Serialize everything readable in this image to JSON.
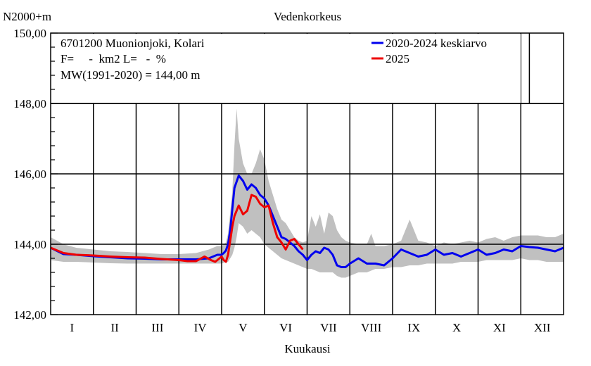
{
  "chart_data": {
    "type": "line",
    "title": "Vedenkorkeus",
    "ylabel": "N2000+m",
    "xlabel": "Kuukausi",
    "ylim": [
      142,
      150
    ],
    "xlim": [
      0,
      12
    ],
    "y_ticks": [
      "142,00",
      "144,00",
      "146,00",
      "148,00",
      "150,00"
    ],
    "y_tick_values": [
      142,
      144,
      146,
      148,
      150
    ],
    "categories": [
      "I",
      "II",
      "III",
      "IV",
      "V",
      "VI",
      "VII",
      "VIII",
      "IX",
      "X",
      "XI",
      "XII"
    ],
    "grid": true,
    "info": {
      "station": "6701200 Muonionjoki, Kolari",
      "area": "F=     -  km2 L=   -  %",
      "mean": "MW(1991-2020) = 144,00 m"
    },
    "legend_position": "top-right",
    "series": [
      {
        "name": "2020-2024 keskiarvo",
        "color": "#0000ee",
        "x": [
          0,
          0.3,
          0.6,
          1.0,
          1.4,
          1.8,
          2.2,
          2.6,
          3.0,
          3.4,
          3.7,
          3.9,
          4.0,
          4.05,
          4.1,
          4.15,
          4.2,
          4.25,
          4.3,
          4.4,
          4.5,
          4.6,
          4.7,
          4.8,
          4.9,
          5.0,
          5.1,
          5.2,
          5.3,
          5.4,
          5.5,
          5.6,
          5.7,
          5.8,
          5.9,
          6.0,
          6.1,
          6.2,
          6.3,
          6.4,
          6.5,
          6.6,
          6.7,
          6.8,
          6.9,
          7.0,
          7.2,
          7.4,
          7.6,
          7.8,
          8.0,
          8.2,
          8.4,
          8.6,
          8.8,
          9.0,
          9.2,
          9.4,
          9.6,
          9.8,
          10.0,
          10.2,
          10.4,
          10.6,
          10.8,
          11.0,
          11.2,
          11.4,
          11.6,
          11.8,
          12.0
        ],
        "y": [
          143.9,
          143.72,
          143.7,
          143.66,
          143.63,
          143.6,
          143.59,
          143.57,
          143.57,
          143.57,
          143.6,
          143.7,
          143.7,
          143.75,
          143.82,
          144.0,
          144.4,
          145.0,
          145.6,
          145.95,
          145.8,
          145.55,
          145.7,
          145.6,
          145.4,
          145.3,
          145.1,
          144.8,
          144.5,
          144.2,
          144.15,
          144.05,
          143.95,
          143.8,
          143.7,
          143.55,
          143.7,
          143.8,
          143.75,
          143.9,
          143.85,
          143.7,
          143.4,
          143.35,
          143.35,
          143.45,
          143.6,
          143.45,
          143.45,
          143.4,
          143.6,
          143.85,
          143.75,
          143.65,
          143.7,
          143.85,
          143.7,
          143.75,
          143.65,
          143.75,
          143.85,
          143.7,
          143.75,
          143.85,
          143.8,
          143.95,
          143.92,
          143.9,
          143.85,
          143.8,
          143.9
        ]
      },
      {
        "name": "2025",
        "color": "#ee0000",
        "x": [
          0,
          0.3,
          0.6,
          1.0,
          1.4,
          1.8,
          2.2,
          2.6,
          3.0,
          3.2,
          3.4,
          3.6,
          3.75,
          3.85,
          3.95,
          4.0,
          4.05,
          4.1,
          4.15,
          4.2,
          4.25,
          4.3,
          4.4,
          4.5,
          4.6,
          4.7,
          4.8,
          4.9,
          5.0,
          5.1,
          5.2,
          5.3,
          5.4,
          5.5,
          5.6,
          5.7,
          5.8,
          5.9
        ],
        "y": [
          143.9,
          143.75,
          143.7,
          143.68,
          143.65,
          143.63,
          143.62,
          143.58,
          143.55,
          143.52,
          143.52,
          143.65,
          143.55,
          143.5,
          143.6,
          143.65,
          143.55,
          143.5,
          143.7,
          144.1,
          144.5,
          144.8,
          145.1,
          144.85,
          144.95,
          145.4,
          145.35,
          145.15,
          145.05,
          145.1,
          144.6,
          144.2,
          144.05,
          143.85,
          144.1,
          144.15,
          144.0,
          143.85
        ]
      }
    ],
    "range_band": {
      "x": [
        0,
        0.3,
        0.6,
        1.0,
        1.4,
        1.8,
        2.2,
        2.6,
        3.0,
        3.4,
        3.7,
        3.9,
        4.0,
        4.1,
        4.15,
        4.2,
        4.25,
        4.3,
        4.35,
        4.4,
        4.5,
        4.6,
        4.7,
        4.8,
        4.9,
        5.0,
        5.1,
        5.2,
        5.3,
        5.4,
        5.5,
        5.6,
        5.7,
        5.8,
        5.9,
        6.0,
        6.1,
        6.2,
        6.3,
        6.4,
        6.5,
        6.6,
        6.7,
        6.8,
        6.9,
        7.0,
        7.2,
        7.4,
        7.5,
        7.6,
        7.8,
        8.0,
        8.2,
        8.4,
        8.6,
        8.8,
        9.0,
        9.2,
        9.4,
        9.6,
        9.8,
        10.0,
        10.2,
        10.4,
        10.6,
        10.8,
        11.0,
        11.2,
        11.4,
        11.6,
        11.8,
        12.0
      ],
      "min": [
        143.55,
        143.5,
        143.5,
        143.48,
        143.46,
        143.45,
        143.45,
        143.45,
        143.45,
        143.45,
        143.45,
        143.45,
        143.45,
        143.5,
        143.5,
        143.6,
        143.7,
        143.9,
        144.2,
        144.6,
        144.5,
        144.3,
        144.4,
        144.3,
        144.2,
        144.0,
        143.9,
        143.8,
        143.7,
        143.6,
        143.55,
        143.5,
        143.45,
        143.4,
        143.35,
        143.3,
        143.3,
        143.25,
        143.2,
        143.2,
        143.2,
        143.2,
        143.1,
        143.05,
        143.05,
        143.1,
        143.2,
        143.2,
        143.25,
        143.3,
        143.3,
        143.35,
        143.35,
        143.4,
        143.4,
        143.45,
        143.45,
        143.45,
        143.45,
        143.5,
        143.5,
        143.5,
        143.55,
        143.55,
        143.55,
        143.55,
        143.6,
        143.55,
        143.55,
        143.5,
        143.5,
        143.5
      ],
      "max": [
        144.2,
        144.0,
        143.9,
        143.85,
        143.8,
        143.78,
        143.75,
        143.72,
        143.72,
        143.75,
        143.85,
        143.95,
        143.95,
        144.05,
        144.3,
        144.9,
        145.5,
        146.8,
        147.85,
        147.0,
        146.3,
        146.0,
        146.0,
        146.3,
        146.7,
        146.4,
        145.8,
        145.4,
        145.0,
        144.7,
        144.6,
        144.4,
        144.2,
        144.1,
        144.05,
        144.1,
        144.8,
        144.5,
        144.85,
        144.3,
        144.9,
        144.8,
        144.4,
        144.2,
        144.1,
        144.05,
        144.0,
        144.0,
        144.3,
        143.95,
        143.95,
        144.0,
        144.1,
        144.7,
        144.1,
        144.05,
        143.95,
        144.05,
        144.0,
        144.05,
        144.1,
        144.05,
        144.15,
        144.2,
        144.1,
        144.2,
        144.25,
        144.25,
        144.25,
        144.2,
        144.2,
        144.3
      ],
      "color": "#c0c0c0"
    }
  }
}
